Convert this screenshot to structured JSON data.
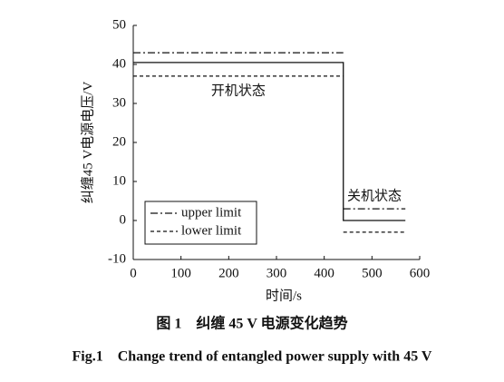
{
  "chart_data": {
    "type": "line",
    "x_label": "时间/s",
    "y_label": "纠缠45 V电源电压/V",
    "annotations": [
      {
        "text": "开机状态",
        "x": 220,
        "y": 33
      },
      {
        "text": "关机状态",
        "x": 505,
        "y": 6
      }
    ],
    "caption_cn": "图 1　纠缠 45 V 电源变化趋势",
    "caption_en": "Fig.1　Change trend of entangled power supply with 45 V",
    "xlim": [
      0,
      600
    ],
    "xticks": [
      0,
      100,
      200,
      300,
      400,
      500,
      600
    ],
    "ylim": [
      -10,
      50
    ],
    "yticks": [
      -10,
      0,
      10,
      20,
      30,
      40,
      50
    ],
    "legend": "lower left",
    "series": [
      {
        "color": "#111111",
        "style": "solid",
        "x": [
          0,
          440,
          440,
          570
        ],
        "values": [
          40.5,
          40.5,
          0,
          0
        ]
      },
      {
        "name": "upper limit",
        "color": "#111111",
        "style": "dash-dot",
        "x": [
          0,
          440,
          440,
          440,
          570
        ],
        "values": [
          43,
          43,
          null,
          3,
          3
        ]
      },
      {
        "name": "lower limit",
        "color": "#111111",
        "style": "dashed",
        "x": [
          0,
          440,
          440,
          440,
          570
        ],
        "values": [
          37,
          37,
          null,
          -3,
          -3
        ]
      }
    ]
  }
}
